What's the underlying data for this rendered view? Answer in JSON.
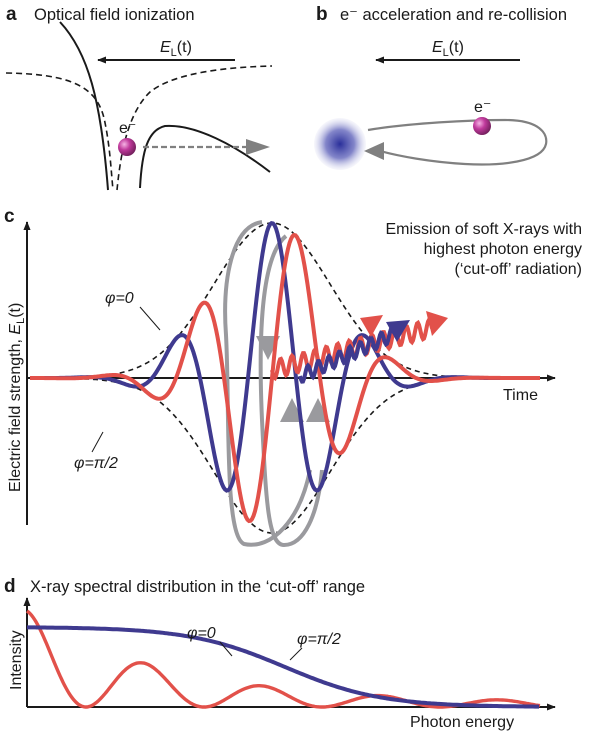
{
  "panels": {
    "a": {
      "letter": "a",
      "title": "Optical field ionization",
      "field_symbol": "E",
      "field_sub": "L",
      "field_arg": "(t)",
      "electron": "e⁻"
    },
    "b": {
      "letter": "b",
      "title": "e⁻ acceleration and re-collision",
      "field_symbol": "E",
      "field_sub": "L",
      "field_arg": "(t)",
      "electron": "e⁻"
    },
    "c": {
      "letter": "c",
      "annotation": [
        "Emission of soft X-rays with",
        "highest photon energy",
        "(‘cut-off’ radiation)"
      ],
      "ylabel_main": "Electric field strength, ",
      "ylabel_sym": "E",
      "ylabel_sub": "L",
      "ylabel_arg": "(t)",
      "xlabel": "Time",
      "series": [
        {
          "name": "φ=0",
          "color": "#3f3a8f"
        },
        {
          "name": "φ=π/2",
          "color": "#e2514a"
        }
      ],
      "envelope_color": "#1a1a1a",
      "trajectory_color": "#9a9a9e"
    },
    "d": {
      "letter": "d",
      "title": "X-ray spectral distribution in the ‘cut-off’ range",
      "ylabel": "Intensity",
      "xlabel": "Photon energy",
      "series": [
        {
          "name": "φ=0",
          "color": "#3f3a8f"
        },
        {
          "name": "φ=π/2",
          "color": "#e2514a"
        }
      ]
    }
  },
  "colors": {
    "electron": "#b0358f",
    "nucleus": "#3b3fa3",
    "arrow_gray": "#808080"
  }
}
